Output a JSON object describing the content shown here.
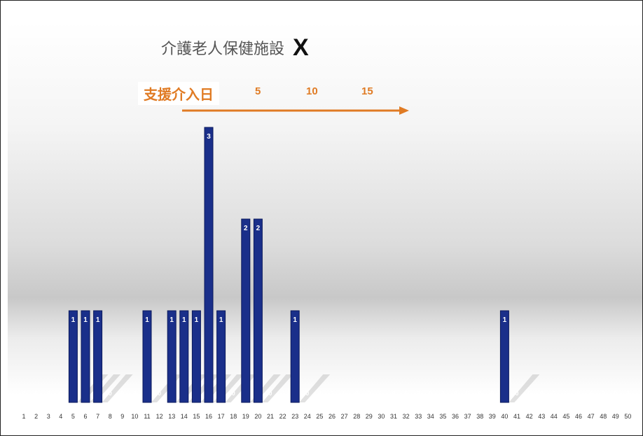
{
  "title": {
    "main": "介護老人保健施設",
    "mark": "X"
  },
  "axis_annotation": {
    "label": "支援介入日",
    "ticks": [
      "5",
      "10",
      "15"
    ],
    "color": "#e07b24"
  },
  "colors": {
    "bar": "#1a2f8a",
    "bar_stroke": "#0b1a5c"
  },
  "chart_data": {
    "type": "bar",
    "title": "介護老人保健施設 X",
    "categories": [
      "1",
      "2",
      "3",
      "4",
      "5",
      "6",
      "7",
      "8",
      "9",
      "10",
      "11",
      "12",
      "13",
      "14",
      "15",
      "16",
      "17",
      "18",
      "19",
      "20",
      "21",
      "22",
      "23",
      "24",
      "25",
      "26",
      "27",
      "28",
      "29",
      "30",
      "31",
      "32",
      "33",
      "34",
      "35",
      "36",
      "37",
      "38",
      "39",
      "40",
      "41",
      "42",
      "43",
      "44",
      "45",
      "46",
      "47",
      "48",
      "49",
      "50"
    ],
    "values": [
      0,
      0,
      0,
      0,
      1,
      1,
      1,
      0,
      0,
      0,
      1,
      0,
      1,
      1,
      1,
      3,
      1,
      0,
      2,
      2,
      0,
      0,
      1,
      0,
      0,
      0,
      0,
      0,
      0,
      0,
      0,
      0,
      0,
      0,
      0,
      0,
      0,
      0,
      0,
      1,
      0,
      0,
      0,
      0,
      0,
      0,
      0,
      0,
      0,
      0
    ],
    "ylim": [
      0,
      3
    ],
    "xlabel": "",
    "ylabel": "",
    "grid": false,
    "data_labels": true
  }
}
